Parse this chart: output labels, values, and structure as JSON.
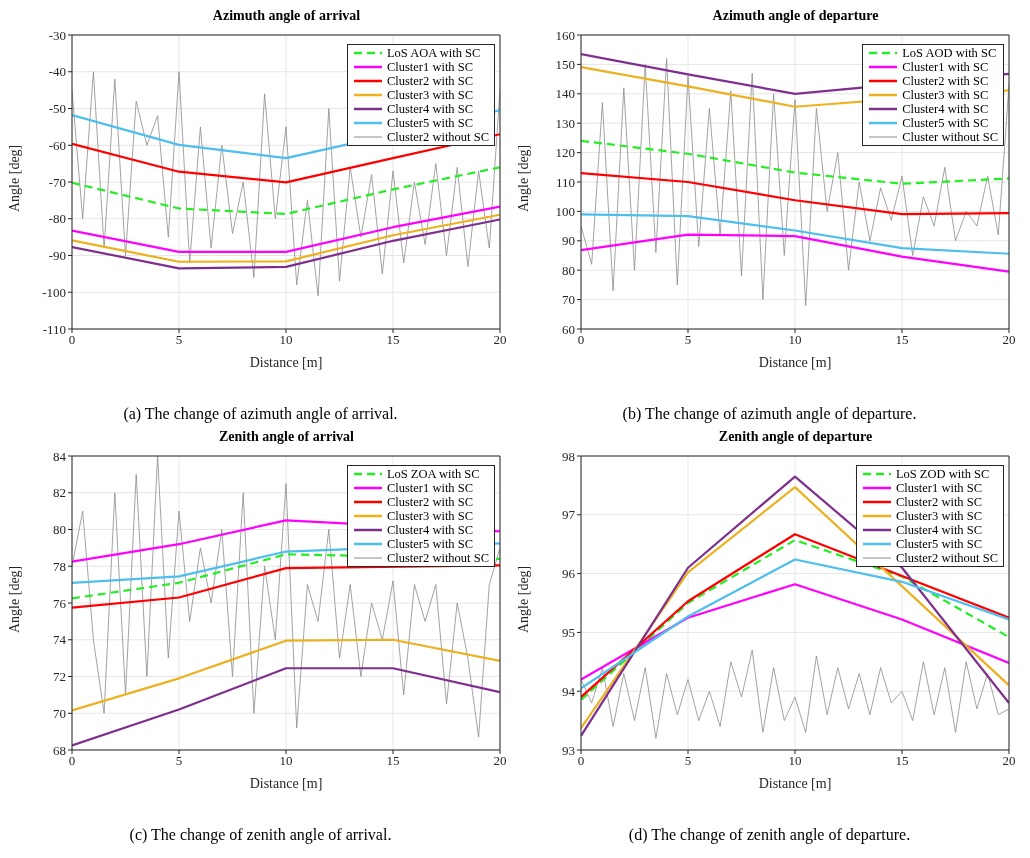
{
  "chart_data": [
    {
      "type": "line",
      "title": "Azimuth angle of arrival",
      "xlabel": "Distance [m]",
      "ylabel": "Angle [deg]",
      "xlim": [
        0,
        20
      ],
      "xticks": [
        0,
        5,
        10,
        15,
        20
      ],
      "ylim": [
        -110,
        -30
      ],
      "yticks": [
        -110,
        -100,
        -90,
        -80,
        -70,
        -60,
        -50,
        -40,
        -30
      ],
      "grid": true,
      "legend": "top right",
      "annotations": [
        "(a) The change of azimuth angle of arrival."
      ],
      "series": [
        {
          "name": "LoS AOA with SC",
          "color": "#22ee22",
          "line_style": "dashed",
          "x": [
            0,
            5,
            10,
            15,
            20
          ],
          "values": [
            -70.2,
            -77.2,
            -78.7,
            -72,
            -66
          ]
        },
        {
          "name": "Cluster1 with SC",
          "color": "#ff00ff",
          "x": [
            0,
            5,
            10,
            15,
            20
          ],
          "values": [
            -83.2,
            -89,
            -89,
            -82.3,
            -76.7
          ]
        },
        {
          "name": "Cluster2 with SC",
          "color": "#ff0000",
          "x": [
            0,
            5,
            10,
            15,
            20
          ],
          "values": [
            -59.6,
            -67.2,
            -70.1,
            -63.5,
            -57
          ]
        },
        {
          "name": "Cluster3 with SC",
          "color": "#edb120",
          "x": [
            0,
            5,
            10,
            15,
            20
          ],
          "values": [
            -85.9,
            -91.7,
            -91.6,
            -84.5,
            -78.9
          ]
        },
        {
          "name": "Cluster4 with SC",
          "color": "#7e2f8e",
          "x": [
            0,
            5,
            10,
            15,
            20
          ],
          "values": [
            -87.7,
            -93.5,
            -93.1,
            -86,
            -80.2
          ]
        },
        {
          "name": "Cluster5 with SC",
          "color": "#4dbeee",
          "x": [
            0,
            5,
            10,
            20
          ],
          "values": [
            -51.8,
            -59.9,
            -63.5,
            -50.5
          ]
        },
        {
          "name": "Cluster2 without SC",
          "color": "#8c8c8c",
          "x": [
            0,
            0.5,
            1,
            1.5,
            2,
            2.5,
            3,
            3.5,
            4,
            4.5,
            5,
            5.5,
            6,
            6.5,
            7,
            7.5,
            8,
            8.5,
            9,
            9.5,
            10,
            10.5,
            11,
            11.5,
            12,
            12.5,
            13,
            13.5,
            14,
            14.5,
            15,
            15.5,
            16,
            16.5,
            17,
            17.5,
            18,
            18.5,
            19,
            19.5,
            20
          ],
          "values": [
            -45,
            -80,
            -40,
            -88,
            -42,
            -90,
            -48,
            -60,
            -52,
            -85,
            -40,
            -92,
            -55,
            -88,
            -60,
            -84,
            -70,
            -96,
            -46,
            -80,
            -55,
            -98,
            -75,
            -101,
            -50,
            -97,
            -66,
            -85,
            -68,
            -95,
            -67,
            -92,
            -70,
            -87,
            -65,
            -90,
            -66,
            -93,
            -67,
            -88,
            -45
          ]
        }
      ]
    },
    {
      "type": "line",
      "title": "Azimuth angle of departure",
      "xlabel": "Distance [m]",
      "ylabel": "Angle [deg]",
      "xlim": [
        0,
        20
      ],
      "xticks": [
        0,
        5,
        10,
        15,
        20
      ],
      "ylim": [
        60,
        160
      ],
      "yticks": [
        60,
        70,
        80,
        90,
        100,
        110,
        120,
        130,
        140,
        150,
        160
      ],
      "grid": true,
      "legend": "top right",
      "annotations": [
        "(b) The change of azimuth angle of departure."
      ],
      "series": [
        {
          "name": "LoS AOD with SC",
          "color": "#22ee22",
          "line_style": "dashed",
          "x": [
            0,
            5,
            10,
            15,
            20
          ],
          "values": [
            124,
            119.6,
            113.2,
            109.4,
            111.2
          ]
        },
        {
          "name": "Cluster1 with SC",
          "color": "#ff00ff",
          "x": [
            0,
            5,
            10,
            15,
            20
          ],
          "values": [
            86.8,
            92.1,
            91.6,
            84.6,
            79.5
          ]
        },
        {
          "name": "Cluster2 with SC",
          "color": "#ff0000",
          "x": [
            0,
            5,
            10,
            15,
            20
          ],
          "values": [
            113,
            110,
            103.8,
            99.1,
            99.4
          ]
        },
        {
          "name": "Cluster3 with SC",
          "color": "#edb120",
          "x": [
            0,
            5,
            10,
            20
          ],
          "values": [
            149.1,
            142.5,
            135.6,
            141.2
          ]
        },
        {
          "name": "Cluster4 with SC",
          "color": "#7e2f8e",
          "x": [
            0,
            5,
            10,
            20
          ],
          "values": [
            153.5,
            146.6,
            140,
            146.8
          ]
        },
        {
          "name": "Cluster5 with SC",
          "color": "#4dbeee",
          "x": [
            0,
            5,
            10,
            15,
            20
          ],
          "values": [
            99,
            98.4,
            93.5,
            87.5,
            85.6
          ]
        },
        {
          "name": "Cluster without SC",
          "color": "#8c8c8c",
          "x": [
            0,
            0.5,
            1,
            1.5,
            2,
            2.5,
            3,
            3.5,
            4,
            4.5,
            5,
            5.5,
            6,
            6.5,
            7,
            7.5,
            8,
            8.5,
            9,
            9.5,
            10,
            10.5,
            11,
            11.5,
            12,
            12.5,
            13,
            13.5,
            14,
            14.5,
            15,
            15.5,
            16,
            16.5,
            17,
            17.5,
            18,
            18.5,
            19,
            19.5,
            20
          ],
          "values": [
            95,
            82,
            137,
            73,
            142,
            80,
            150,
            86,
            152,
            75,
            146,
            88,
            135,
            92,
            141,
            78,
            147,
            70,
            140,
            85,
            138,
            68,
            135,
            100,
            120,
            80,
            110,
            90,
            108,
            97,
            112,
            85,
            105,
            95,
            115,
            90,
            100,
            95,
            112,
            92,
            143
          ]
        }
      ]
    },
    {
      "type": "line",
      "title": "Zenith angle of arrival",
      "xlabel": "Distance [m]",
      "ylabel": "Angle [deg]",
      "xlim": [
        0,
        20
      ],
      "xticks": [
        0,
        5,
        10,
        15,
        20
      ],
      "ylim": [
        68,
        84
      ],
      "yticks": [
        68,
        70,
        72,
        74,
        76,
        78,
        80,
        82,
        84
      ],
      "grid": true,
      "legend": "top right",
      "annotations": [
        "(c) The change of zenith angle of arrival."
      ],
      "series": [
        {
          "name": "LoS ZOA with SC",
          "color": "#22ee22",
          "line_style": "dashed",
          "x": [
            0,
            5,
            10,
            20
          ],
          "values": [
            76.25,
            77.1,
            78.65,
            78.4
          ]
        },
        {
          "name": "Cluster1 with SC",
          "color": "#ff00ff",
          "x": [
            0,
            5,
            10,
            20
          ],
          "values": [
            78.25,
            79.2,
            80.5,
            79.9
          ]
        },
        {
          "name": "Cluster2 with SC",
          "color": "#ff0000",
          "x": [
            0,
            5,
            10,
            20
          ],
          "values": [
            75.75,
            76.3,
            77.9,
            78.05
          ]
        },
        {
          "name": "Cluster3 with SC",
          "color": "#edb120",
          "x": [
            0,
            5,
            10,
            15,
            20
          ],
          "values": [
            70.15,
            71.9,
            73.95,
            74,
            72.85
          ]
        },
        {
          "name": "Cluster4 with SC",
          "color": "#7e2f8e",
          "x": [
            0,
            5,
            10,
            15,
            20
          ],
          "values": [
            68.25,
            70.2,
            72.45,
            72.45,
            71.15
          ]
        },
        {
          "name": "Cluster5 with SC",
          "color": "#4dbeee",
          "x": [
            0,
            5,
            10,
            20
          ],
          "values": [
            77.1,
            77.45,
            78.8,
            79.25
          ]
        },
        {
          "name": "Cluster2 without SC",
          "color": "#8c8c8c",
          "x": [
            0,
            0.5,
            1,
            1.5,
            2,
            2.5,
            3,
            3.5,
            4,
            4.5,
            5,
            5.5,
            6,
            6.5,
            7,
            7.5,
            8,
            8.5,
            9,
            9.5,
            10,
            10.5,
            11,
            11.5,
            12,
            12.5,
            13,
            13.5,
            14,
            14.5,
            15,
            15.5,
            16,
            16.5,
            17,
            17.5,
            18,
            18.5,
            19,
            19.5,
            20
          ],
          "values": [
            78,
            81,
            74,
            70,
            82,
            71,
            83,
            72,
            84,
            73,
            81,
            75,
            79,
            76,
            80,
            72,
            82,
            70,
            78,
            74,
            82.5,
            69.2,
            77,
            75,
            80,
            73,
            77,
            72,
            76,
            74,
            77.2,
            71,
            77,
            75,
            77,
            70.5,
            76,
            73,
            68.7,
            77,
            79
          ]
        }
      ]
    },
    {
      "type": "line",
      "title": "Zenith angle of departure",
      "xlabel": "Distance [m]",
      "ylabel": "Angle [deg]",
      "xlim": [
        0,
        20
      ],
      "xticks": [
        0,
        5,
        10,
        15,
        20
      ],
      "ylim": [
        93,
        98
      ],
      "yticks": [
        93,
        94,
        95,
        96,
        97,
        98
      ],
      "grid": true,
      "legend": "top right",
      "annotations": [
        "(d) The change of zenith angle of departure."
      ],
      "series": [
        {
          "name": "LoS ZOD with SC",
          "color": "#22ee22",
          "line_style": "dashed",
          "x": [
            0,
            5,
            10,
            15,
            20
          ],
          "values": [
            93.85,
            95.5,
            96.57,
            95.95,
            94.92
          ]
        },
        {
          "name": "Cluster1 with SC",
          "color": "#ff00ff",
          "x": [
            0,
            5,
            10,
            15,
            20
          ],
          "values": [
            94.2,
            95.25,
            95.82,
            95.22,
            94.48
          ]
        },
        {
          "name": "Cluster2 with SC",
          "color": "#ff0000",
          "x": [
            0,
            5,
            10,
            20
          ],
          "values": [
            93.9,
            95.53,
            96.67,
            95.25
          ]
        },
        {
          "name": "Cluster3 with SC",
          "color": "#edb120",
          "x": [
            0,
            5,
            10,
            20
          ],
          "values": [
            93.37,
            96.02,
            97.47,
            94.1
          ]
        },
        {
          "name": "Cluster4 with SC",
          "color": "#7e2f8e",
          "x": [
            0,
            5,
            10,
            15,
            20
          ],
          "values": [
            93.24,
            96.1,
            97.65,
            96.1,
            93.8
          ]
        },
        {
          "name": "Cluster5 with SC",
          "color": "#4dbeee",
          "x": [
            0,
            5,
            10,
            15,
            20
          ],
          "values": [
            94.05,
            95.27,
            96.24,
            95.86,
            95.22
          ]
        },
        {
          "name": "Cluster2 without SC",
          "color": "#8c8c8c",
          "x": [
            0,
            0.5,
            1,
            1.5,
            2,
            2.5,
            3,
            3.5,
            4,
            4.5,
            5,
            5.5,
            6,
            6.5,
            7,
            7.5,
            8,
            8.5,
            9,
            9.5,
            10,
            10.5,
            11,
            11.5,
            12,
            12.5,
            13,
            13.5,
            14,
            14.5,
            15,
            15.5,
            16,
            16.5,
            17,
            17.5,
            18,
            18.5,
            19,
            19.5,
            20
          ],
          "values": [
            94.2,
            93.8,
            94.4,
            93.4,
            94.3,
            93.5,
            94.4,
            93.2,
            94.3,
            93.6,
            94.2,
            93.5,
            94,
            93.4,
            94.5,
            93.9,
            94.7,
            93.3,
            94.4,
            93.5,
            93.9,
            93.3,
            94.6,
            93.6,
            94.4,
            93.7,
            94.3,
            93.6,
            94.4,
            93.8,
            94,
            93.5,
            94.5,
            93.6,
            94.4,
            93.3,
            94.5,
            93.7,
            94.3,
            93.6,
            93.7
          ]
        }
      ]
    }
  ]
}
